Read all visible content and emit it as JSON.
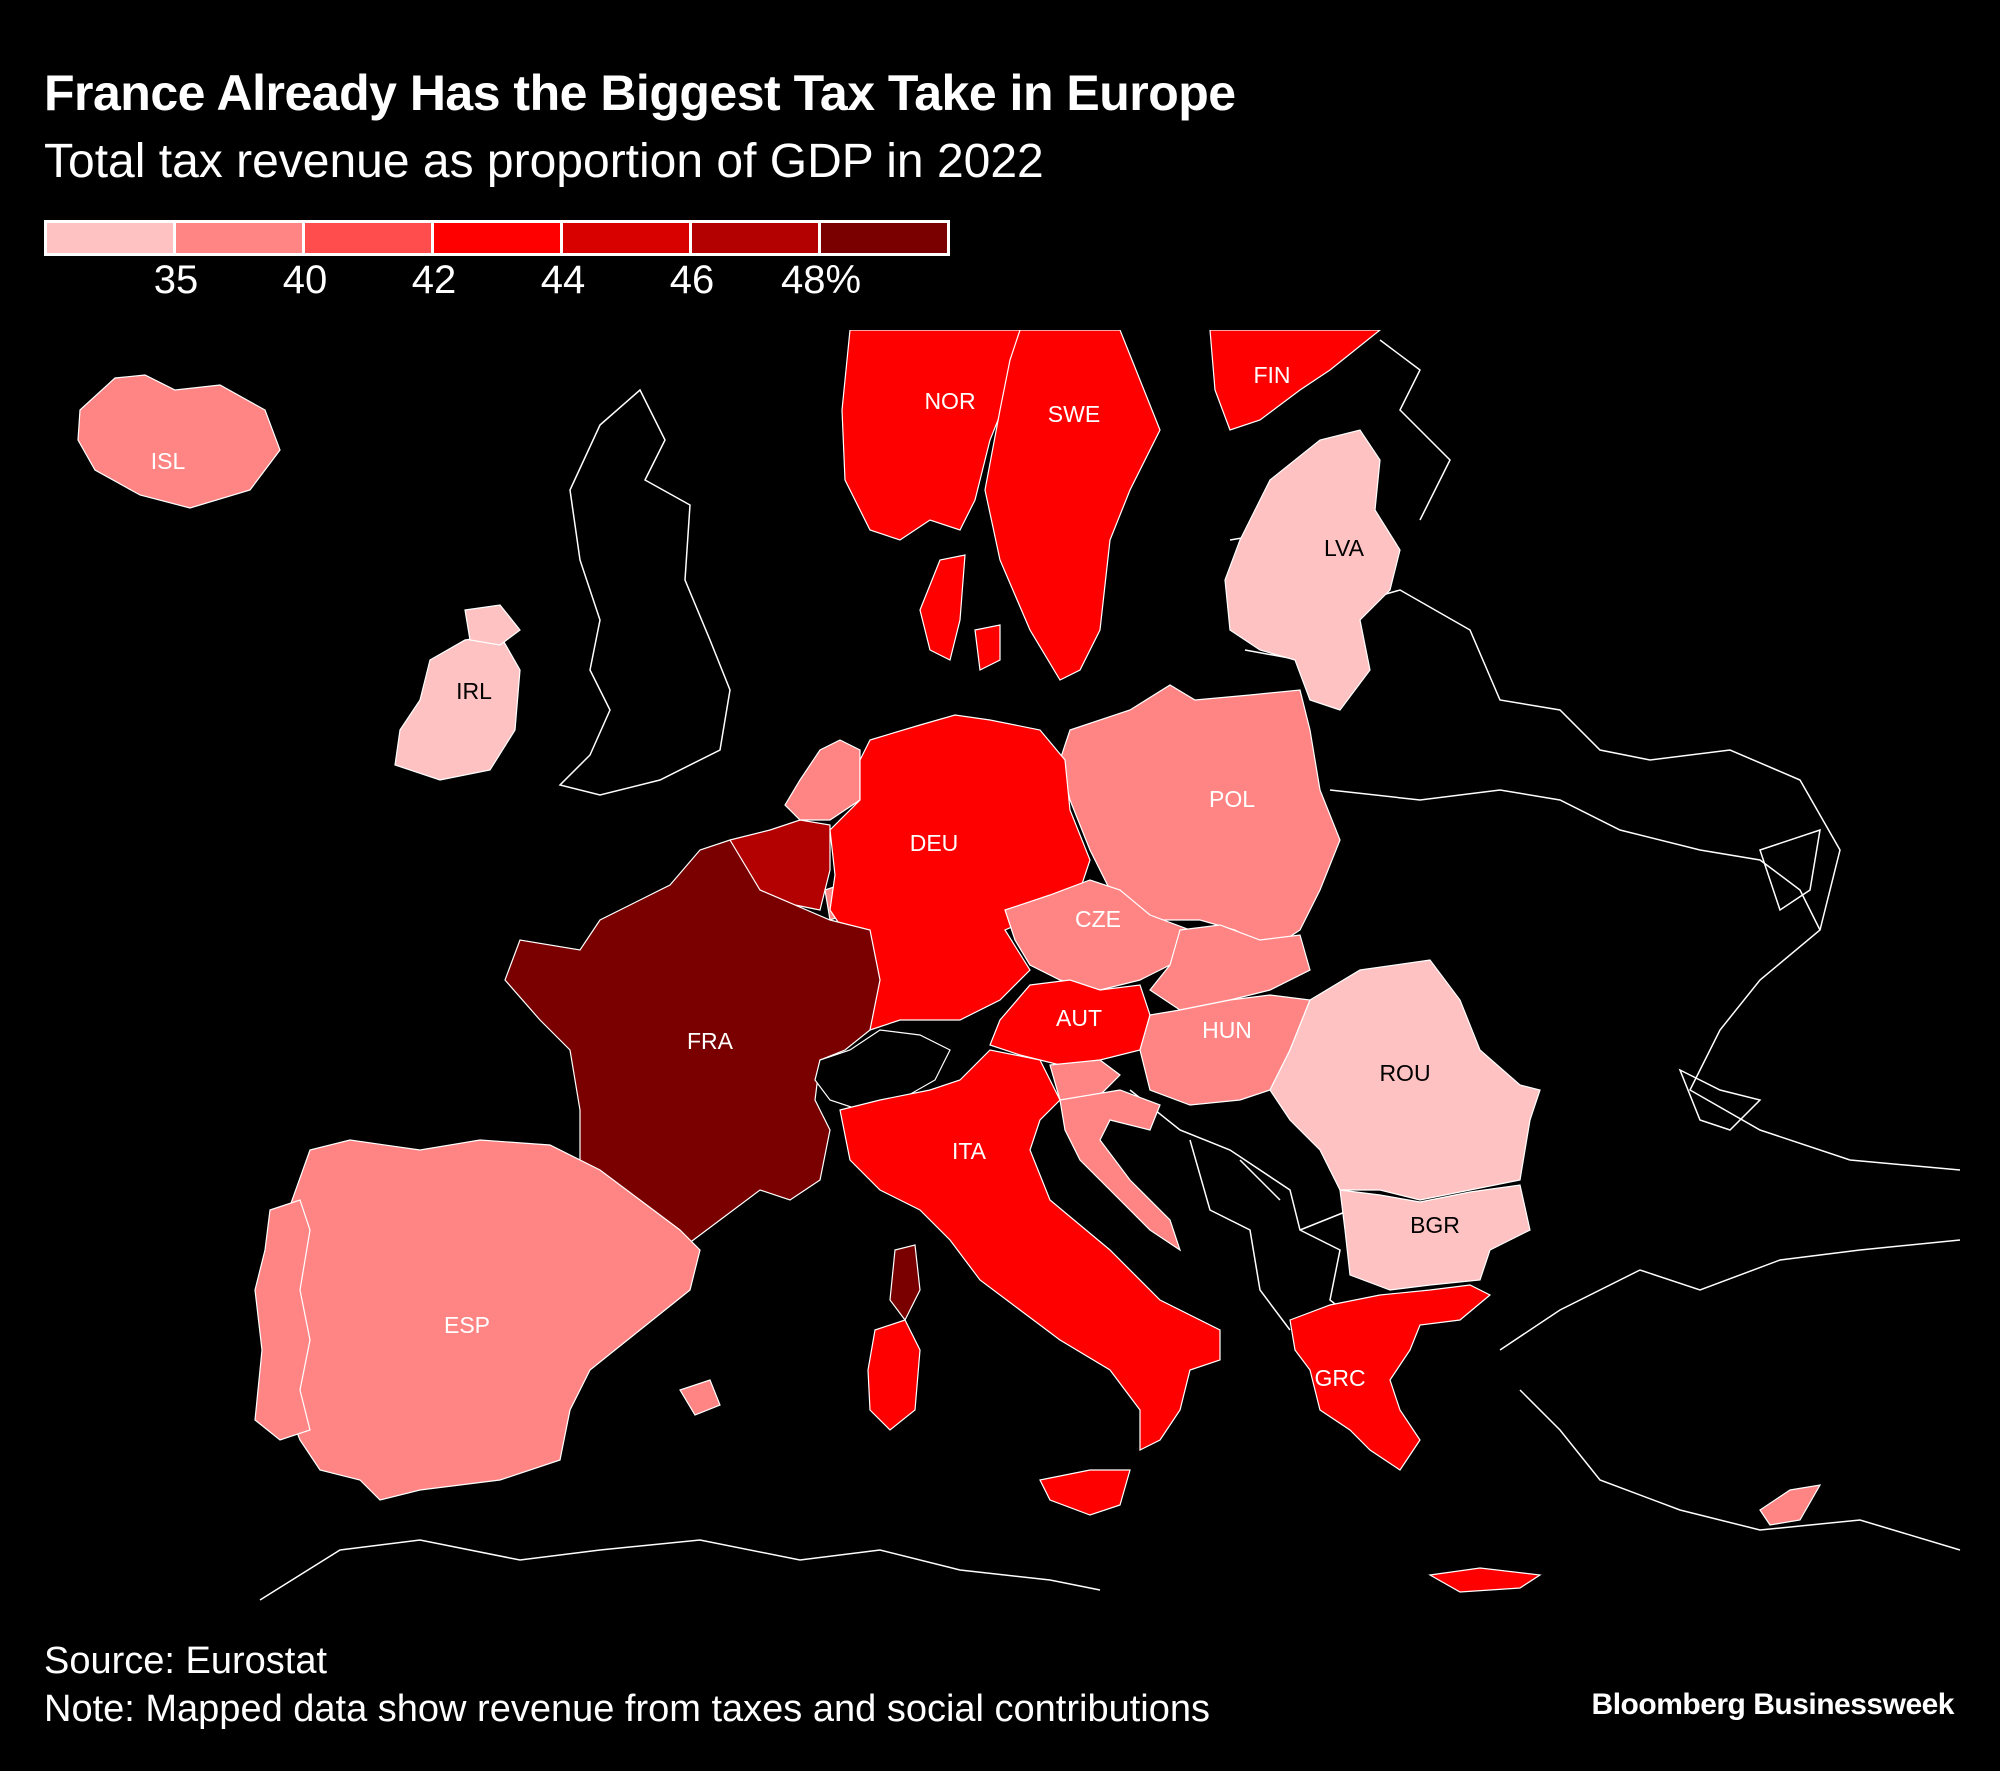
{
  "title": "France Already Has the Biggest Tax Take in Europe",
  "subtitle": "Total tax revenue as proportion of GDP in 2022",
  "legend": {
    "colors": [
      "#ffc2c2",
      "#ff8585",
      "#ff4d4d",
      "#ff0000",
      "#d90000",
      "#b30000",
      "#7a0000"
    ],
    "ticks": [
      "35",
      "40",
      "42",
      "44",
      "46",
      "48%"
    ]
  },
  "countries": [
    {
      "code": "NOR",
      "label": "NOR",
      "class": 3
    },
    {
      "code": "SWE",
      "label": "SWE",
      "class": 3
    },
    {
      "code": "FIN",
      "label": "FIN",
      "class": 3
    },
    {
      "code": "ISL",
      "label": "ISL",
      "class": 1
    },
    {
      "code": "LVA",
      "label": "LVA",
      "class": 0
    },
    {
      "code": "IRL",
      "label": "IRL",
      "class": 0
    },
    {
      "code": "POL",
      "label": "POL",
      "class": 1
    },
    {
      "code": "DEU",
      "label": "DEU",
      "class": 3
    },
    {
      "code": "CZE",
      "label": "CZE",
      "class": 1
    },
    {
      "code": "AUT",
      "label": "AUT",
      "class": 3
    },
    {
      "code": "HUN",
      "label": "HUN",
      "class": 1
    },
    {
      "code": "ROU",
      "label": "ROU",
      "class": 0
    },
    {
      "code": "BGR",
      "label": "BGR",
      "class": 0
    },
    {
      "code": "FRA",
      "label": "FRA",
      "class": 6
    },
    {
      "code": "ITA",
      "label": "ITA",
      "class": 3
    },
    {
      "code": "ESP",
      "label": "ESP",
      "class": 1
    },
    {
      "code": "GRC",
      "label": "GRC",
      "class": 3
    }
  ],
  "footer": {
    "source": "Source: Eurostat",
    "note": "Note: Mapped data show revenue from taxes and social contributions"
  },
  "brand": "Bloomberg Businessweek"
}
